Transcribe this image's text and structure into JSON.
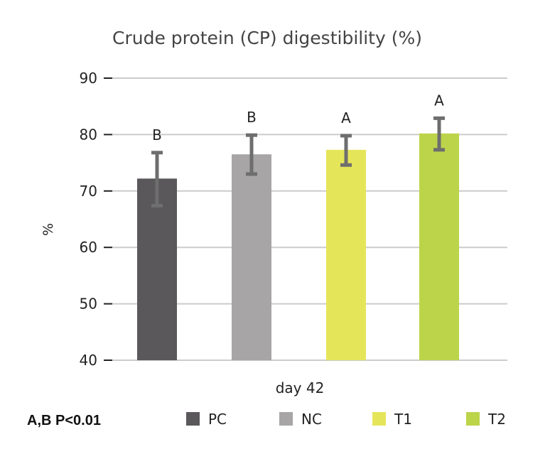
{
  "chart_data": {
    "type": "bar",
    "title": "Crude protein (CP) digestibility (%)",
    "ylabel": "%",
    "xlabel": "",
    "ylim": [
      40,
      90
    ],
    "yticks": [
      40,
      50,
      60,
      70,
      80,
      90
    ],
    "grid": true,
    "x_category_label": "day 42",
    "note": "A,B P<0.01",
    "legend_position": "bottom",
    "series": [
      {
        "name": "PC",
        "value": 72.2,
        "err_low": 67.4,
        "err_high": 76.8,
        "letter": "B",
        "color": "#5a585b"
      },
      {
        "name": "NC",
        "value": 76.5,
        "err_low": 73.0,
        "err_high": 79.9,
        "letter": "B",
        "color": "#a7a5a6"
      },
      {
        "name": "T1",
        "value": 77.3,
        "err_low": 74.6,
        "err_high": 79.8,
        "letter": "A",
        "color": "#e5e55a"
      },
      {
        "name": "T2",
        "value": 80.2,
        "err_low": 77.3,
        "err_high": 82.9,
        "letter": "A",
        "color": "#bcd44a"
      }
    ],
    "error_bar_color": "#6e6e6e",
    "grid_color": "#cccccc"
  }
}
